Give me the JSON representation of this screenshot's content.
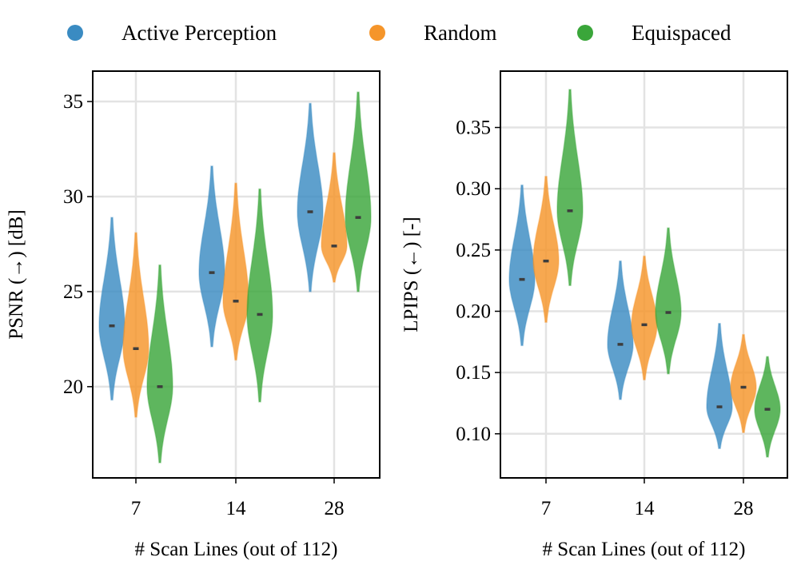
{
  "legend": [
    {
      "label": "Active Perception",
      "color": "#3a8bc2"
    },
    {
      "label": "Random",
      "color": "#f5952a"
    },
    {
      "label": "Equispaced",
      "color": "#3aa63a"
    }
  ],
  "chart_data": [
    {
      "type": "violin",
      "title": "",
      "xlabel": "# Scan Lines (out of 112)",
      "ylabel": "PSNR (→) [dB]",
      "categories": [
        "7",
        "14",
        "28"
      ],
      "ylim": [
        15.2,
        36.6
      ],
      "yticks": [
        20,
        25,
        30,
        35
      ],
      "grid": true,
      "series": [
        {
          "name": "Active Perception",
          "color": "#3a8bc2",
          "medians": [
            23.2,
            26.0,
            29.2
          ],
          "mins": [
            19.3,
            22.1,
            25.0
          ],
          "maxs": [
            28.9,
            31.6,
            34.9
          ]
        },
        {
          "name": "Random",
          "color": "#f5952a",
          "medians": [
            22.0,
            24.5,
            27.4
          ],
          "mins": [
            18.4,
            21.4,
            25.5
          ],
          "maxs": [
            28.1,
            30.7,
            32.3
          ]
        },
        {
          "name": "Equispaced",
          "color": "#3aa63a",
          "medians": [
            20.0,
            23.8,
            28.9
          ],
          "mins": [
            16.0,
            19.2,
            25.0
          ],
          "maxs": [
            26.4,
            30.4,
            35.5
          ]
        }
      ]
    },
    {
      "type": "violin",
      "title": "",
      "xlabel": "# Scan Lines (out of 112)",
      "ylabel": "LPIPS (←) [-]",
      "categories": [
        "7",
        "14",
        "28"
      ],
      "ylim": [
        0.064,
        0.396
      ],
      "yticks": [
        0.1,
        0.15,
        0.2,
        0.25,
        0.3,
        0.35
      ],
      "grid": true,
      "series": [
        {
          "name": "Active Perception",
          "color": "#3a8bc2",
          "medians": [
            0.226,
            0.173,
            0.122
          ],
          "mins": [
            0.172,
            0.128,
            0.088
          ],
          "maxs": [
            0.303,
            0.241,
            0.19
          ]
        },
        {
          "name": "Random",
          "color": "#f5952a",
          "medians": [
            0.241,
            0.189,
            0.138
          ],
          "mins": [
            0.191,
            0.144,
            0.101
          ],
          "maxs": [
            0.31,
            0.245,
            0.181
          ]
        },
        {
          "name": "Equispaced",
          "color": "#3aa63a",
          "medians": [
            0.282,
            0.199,
            0.12
          ],
          "mins": [
            0.221,
            0.149,
            0.081
          ],
          "maxs": [
            0.381,
            0.268,
            0.163
          ]
        }
      ]
    }
  ]
}
